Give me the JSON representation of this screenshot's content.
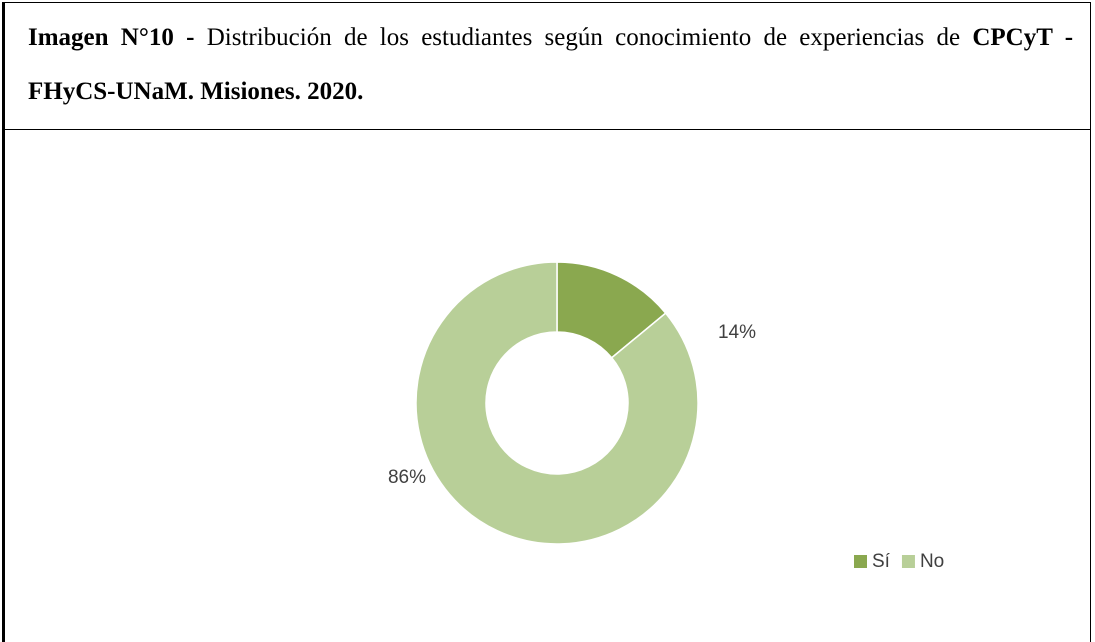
{
  "chart_data": {
    "type": "donut",
    "title_parts": [
      {
        "text": "Imagen N°10 -",
        "bold": true
      },
      {
        "text": "Distribución de los estudiantes según conocimiento de experiencias de",
        "bold": false
      },
      {
        "text": "CPCyT - FHyCS-UNaM. Misiones. 2020.",
        "bold": true
      }
    ],
    "categories": [
      "Sí",
      "No"
    ],
    "values": [
      14,
      86
    ],
    "value_labels": [
      "14%",
      "86%"
    ],
    "colors": [
      "#8aa84f",
      "#b8cf98"
    ],
    "legend": "bottom-right"
  }
}
